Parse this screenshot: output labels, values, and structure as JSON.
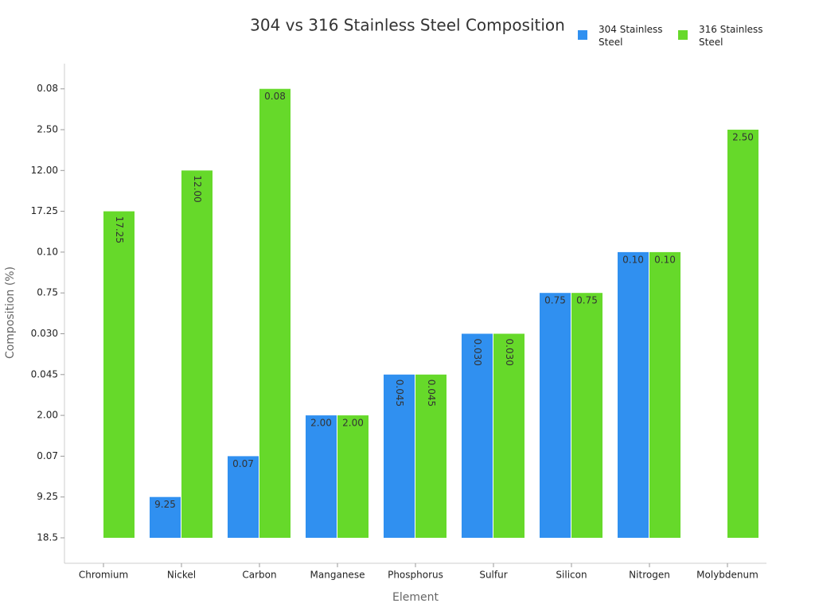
{
  "chart_data": {
    "type": "bar",
    "title": "304 vs 316 Stainless Steel Composition",
    "x_label": "Element",
    "y_label": "Composition (%)",
    "categories": [
      "Chromium",
      "Nickel",
      "Carbon",
      "Manganese",
      "Phosphorus",
      "Sulfur",
      "Silicon",
      "Nitrogen",
      "Molybdenum"
    ],
    "yticks": [
      18.5,
      9.25,
      0.07,
      {
        "value": 2,
        "label": "2.00"
      },
      0.045,
      {
        "value": 0.03,
        "label": "0.030"
      },
      0.75,
      {
        "value": 0.1,
        "label": "0.10"
      },
      17.25,
      {
        "value": 12,
        "label": "12.00"
      },
      {
        "value": 2.5,
        "label": "2.50"
      },
      0.08
    ],
    "legend": "top-right",
    "series": [
      {
        "name": "304 Stainless Steel",
        "color": "#3090f0",
        "values": [
          18.5,
          9.25,
          0.07,
          2,
          0.045,
          0.03,
          0.75,
          0.1,
          null
        ],
        "value_labels": [
          null,
          "9.25",
          "0.07",
          "2.00",
          "0.045",
          "0.030",
          "0.75",
          "0.10",
          null
        ]
      },
      {
        "name": "316 Stainless Steel",
        "color": "#66d92a",
        "values": [
          17.25,
          12,
          0.08,
          2,
          0.045,
          0.03,
          0.75,
          0.1,
          2.5
        ],
        "value_labels": [
          "17.25",
          "12.00",
          "0.08",
          "2.00",
          "0.045",
          "0.030",
          "0.75",
          "0.10",
          "2.50"
        ]
      }
    ]
  }
}
